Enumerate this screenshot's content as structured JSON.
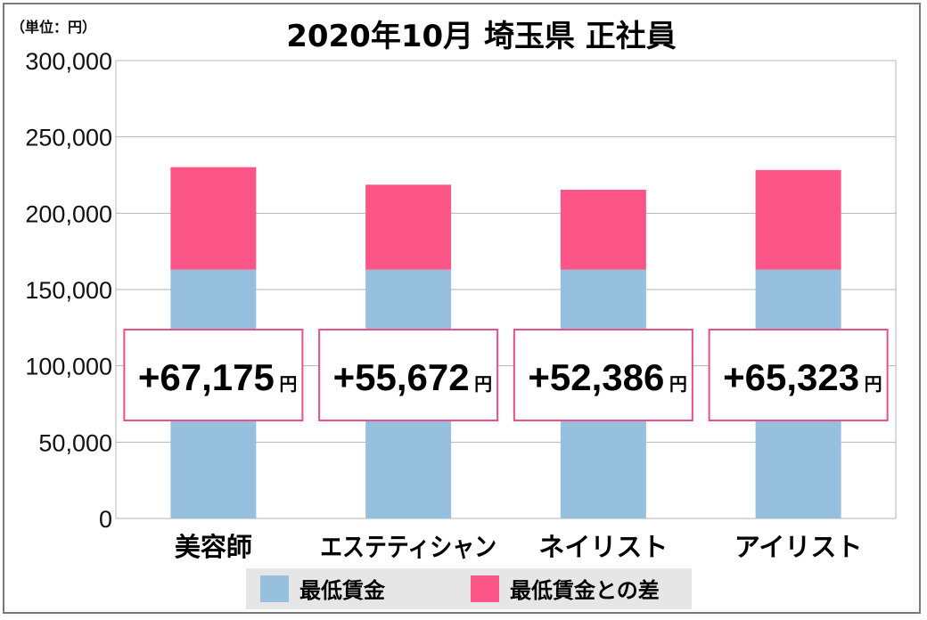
{
  "unit_label": "（単位：円）",
  "chart_data": {
    "type": "bar",
    "stacked": true,
    "title": "2020年10月 埼玉県 正社員",
    "categories": [
      "美容師",
      "エステティシャン",
      "ネイリスト",
      "アイリスト"
    ],
    "series": [
      {
        "name": "最低賃金",
        "color": "#96c0de",
        "values": [
          163000,
          163000,
          163000,
          163000
        ]
      },
      {
        "name": "最低賃金との差",
        "color": "#fc5587",
        "values": [
          67175,
          55672,
          52386,
          65323
        ]
      }
    ],
    "difference_labels": [
      "+67,175",
      "+55,672",
      "+52,386",
      "+65,323"
    ],
    "difference_unit": "円",
    "yticks": [
      "0",
      "50,000",
      "100,000",
      "150,000",
      "200,000",
      "250,000",
      "300,000"
    ],
    "ylim": [
      0,
      300000
    ],
    "grid": true,
    "legend_position": "bottom"
  }
}
